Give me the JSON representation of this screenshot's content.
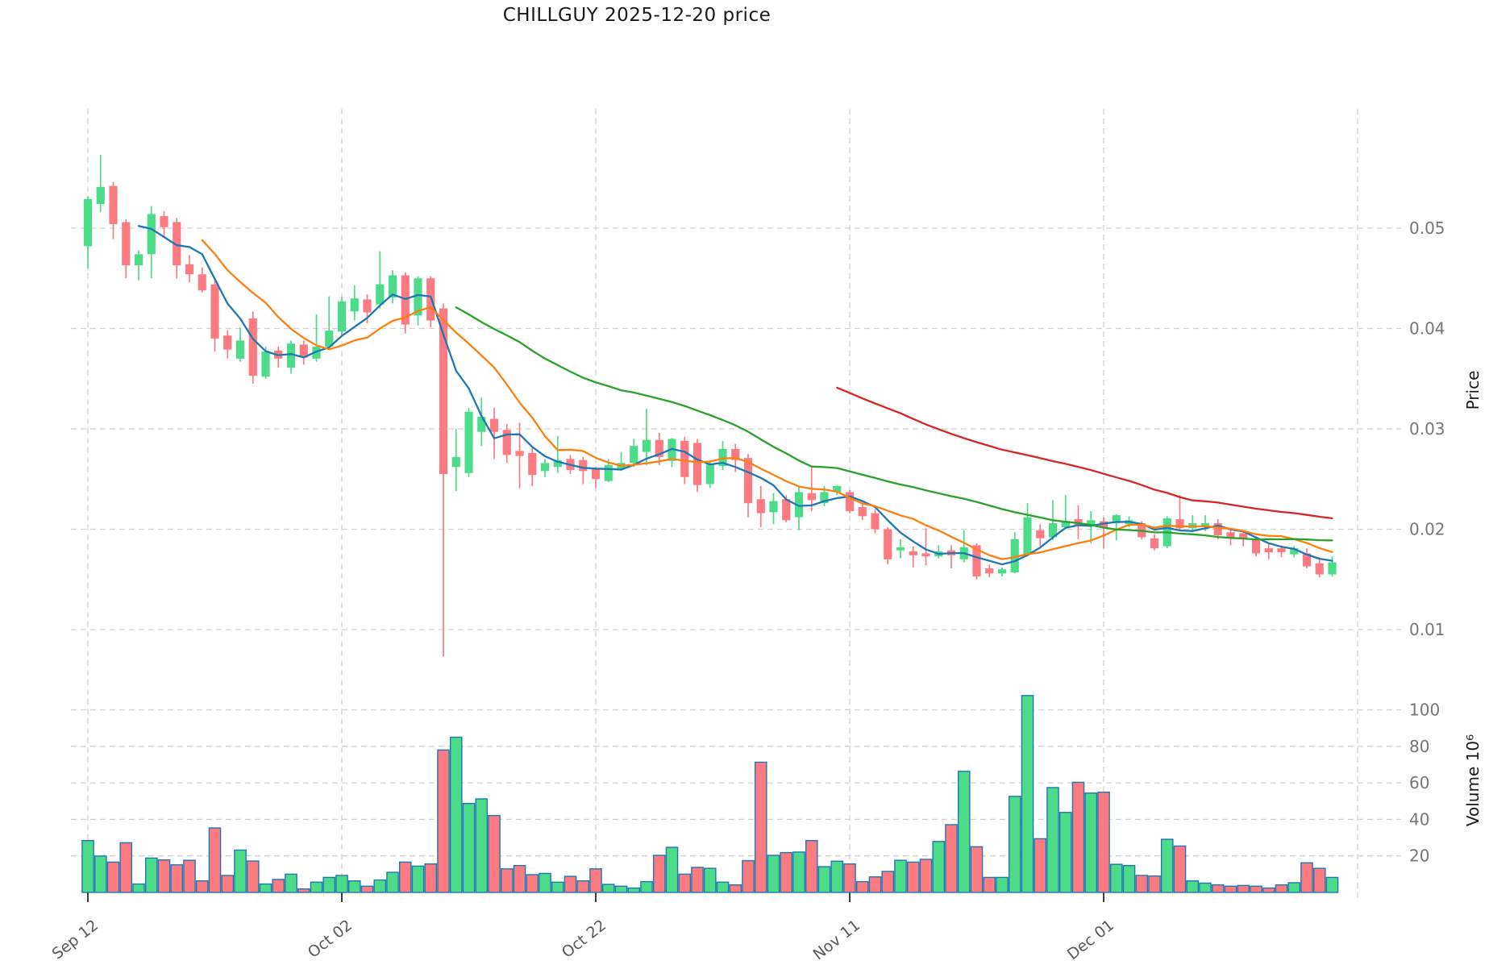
{
  "title": "CHILLGUY  2025-12-20  price",
  "colors": {
    "background": "#ffffff",
    "up": "#4cdc89",
    "down": "#fc7b83",
    "volume_edge": "#1f77b4",
    "grid": "#d3d3d3",
    "tick_label": "#767676",
    "axis_title": "#1a1a1a",
    "x_tick_mark": "#3c3c3c"
  },
  "chart_data": {
    "type": "candlestick+volume",
    "title": "CHILLGUY  2025-12-20  price",
    "ylabel_price": "Price",
    "ylabel_volume": "Volume  10⁶",
    "price_ticks": [
      0.01,
      0.02,
      0.03,
      0.04,
      0.05
    ],
    "volume_ticks": [
      20,
      40,
      60,
      80,
      100
    ],
    "price_range": [
      0.0058,
      0.0619
    ],
    "volume_range": [
      0,
      115.6
    ],
    "grid": true,
    "x_ticks": [
      {
        "label": "Sep 12",
        "date": "2025-09-12"
      },
      {
        "label": "Oct 02",
        "date": "2025-10-02"
      },
      {
        "label": "Oct 22",
        "date": "2025-10-22"
      },
      {
        "label": "Nov 11",
        "date": "2025-11-11"
      },
      {
        "label": "Dec 01",
        "date": "2025-12-01"
      }
    ],
    "right_edge_date": "2025-12-21",
    "moving_averages": [
      {
        "name": "MA5",
        "window": 5,
        "color": "#1f77b4"
      },
      {
        "name": "MA10",
        "window": 10,
        "color": "#ff7f0e"
      },
      {
        "name": "MA30",
        "window": 30,
        "color": "#2ca02c"
      },
      {
        "name": "MA60",
        "window": 60,
        "color": "#d62728"
      }
    ],
    "series_columns": [
      "date",
      "open",
      "high",
      "low",
      "close",
      "volume_millions"
    ],
    "series": [
      [
        "2025-09-12",
        0.0482,
        0.0532,
        0.046,
        0.0529,
        28.4
      ],
      [
        "2025-09-13",
        0.0524,
        0.0573,
        0.0516,
        0.0541,
        19.9
      ],
      [
        "2025-09-14",
        0.0542,
        0.0546,
        0.0489,
        0.0504,
        16.6
      ],
      [
        "2025-09-15",
        0.0506,
        0.0509,
        0.045,
        0.0463,
        27.2
      ],
      [
        "2025-09-16",
        0.0463,
        0.0478,
        0.0448,
        0.0474,
        4.6
      ],
      [
        "2025-09-17",
        0.0474,
        0.0522,
        0.045,
        0.0514,
        18.8
      ],
      [
        "2025-09-18",
        0.0512,
        0.0517,
        0.0491,
        0.0501,
        17.8
      ],
      [
        "2025-09-19",
        0.0506,
        0.051,
        0.045,
        0.0463,
        15.1
      ],
      [
        "2025-09-20",
        0.0464,
        0.0473,
        0.0446,
        0.0454,
        17.6
      ],
      [
        "2025-09-21",
        0.0454,
        0.0461,
        0.0436,
        0.0438,
        6.3
      ],
      [
        "2025-09-22",
        0.0444,
        0.0448,
        0.0377,
        0.039,
        35.3
      ],
      [
        "2025-09-23",
        0.0393,
        0.0398,
        0.037,
        0.0379,
        9.3
      ],
      [
        "2025-09-24",
        0.037,
        0.0401,
        0.0367,
        0.0388,
        23.2
      ],
      [
        "2025-09-25",
        0.041,
        0.0417,
        0.0345,
        0.0353,
        17.2
      ],
      [
        "2025-09-26",
        0.0352,
        0.0382,
        0.035,
        0.0377,
        4.6
      ],
      [
        "2025-09-27",
        0.0378,
        0.0382,
        0.0361,
        0.037,
        7.1
      ],
      [
        "2025-09-28",
        0.0361,
        0.0388,
        0.0355,
        0.0385,
        10.0
      ],
      [
        "2025-09-29",
        0.0384,
        0.0388,
        0.0364,
        0.0371,
        1.9
      ],
      [
        "2025-09-30",
        0.037,
        0.0414,
        0.0367,
        0.0382,
        5.6
      ],
      [
        "2025-10-01",
        0.0382,
        0.0432,
        0.038,
        0.0398,
        8.2
      ],
      [
        "2025-10-02",
        0.0397,
        0.0431,
        0.0392,
        0.0427,
        9.3
      ],
      [
        "2025-10-03",
        0.0417,
        0.0443,
        0.0408,
        0.043,
        6.3
      ],
      [
        "2025-10-04",
        0.0429,
        0.0434,
        0.0405,
        0.0416,
        3.4
      ],
      [
        "2025-10-05",
        0.0424,
        0.0477,
        0.042,
        0.0444,
        6.8
      ],
      [
        "2025-10-06",
        0.0431,
        0.0458,
        0.0425,
        0.0453,
        11.0
      ],
      [
        "2025-10-07",
        0.0453,
        0.0456,
        0.0395,
        0.0404,
        16.6
      ],
      [
        "2025-10-08",
        0.0413,
        0.0452,
        0.0403,
        0.045,
        14.4
      ],
      [
        "2025-10-09",
        0.045,
        0.0452,
        0.0401,
        0.0408,
        15.6
      ],
      [
        "2025-10-10",
        0.042,
        0.0425,
        0.0073,
        0.0255,
        78.0
      ],
      [
        "2025-10-11",
        0.0262,
        0.03,
        0.0238,
        0.0272,
        85.0
      ],
      [
        "2025-10-12",
        0.0256,
        0.0321,
        0.0252,
        0.0317,
        48.7
      ],
      [
        "2025-10-13",
        0.0297,
        0.0331,
        0.0283,
        0.0312,
        51.2
      ],
      [
        "2025-10-14",
        0.031,
        0.0321,
        0.027,
        0.0297,
        42.1
      ],
      [
        "2025-10-15",
        0.0299,
        0.0305,
        0.0266,
        0.0274,
        12.9
      ],
      [
        "2025-10-16",
        0.0278,
        0.0306,
        0.0241,
        0.0273,
        14.7
      ],
      [
        "2025-10-17",
        0.0276,
        0.0281,
        0.0243,
        0.0254,
        9.7
      ],
      [
        "2025-10-18",
        0.0258,
        0.027,
        0.0252,
        0.0266,
        10.4
      ],
      [
        "2025-10-19",
        0.0262,
        0.0293,
        0.0256,
        0.0269,
        5.6
      ],
      [
        "2025-10-20",
        0.027,
        0.0274,
        0.0255,
        0.0259,
        8.8
      ],
      [
        "2025-10-21",
        0.0269,
        0.0272,
        0.0245,
        0.0258,
        6.3
      ],
      [
        "2025-10-22",
        0.026,
        0.0262,
        0.0241,
        0.025,
        12.9
      ],
      [
        "2025-10-23",
        0.0248,
        0.027,
        0.0247,
        0.0264,
        4.4
      ],
      [
        "2025-10-24",
        0.026,
        0.0277,
        0.0258,
        0.0266,
        3.4
      ],
      [
        "2025-10-25",
        0.0266,
        0.029,
        0.0262,
        0.0283,
        2.4
      ],
      [
        "2025-10-26",
        0.0277,
        0.032,
        0.0264,
        0.0289,
        5.9
      ],
      [
        "2025-10-27",
        0.0289,
        0.0296,
        0.0264,
        0.0272,
        20.3
      ],
      [
        "2025-10-28",
        0.0268,
        0.0291,
        0.0262,
        0.029,
        24.7
      ],
      [
        "2025-10-29",
        0.0288,
        0.0292,
        0.0245,
        0.0252,
        10.0
      ],
      [
        "2025-10-30",
        0.0286,
        0.029,
        0.0237,
        0.0244,
        13.7
      ],
      [
        "2025-10-31",
        0.0245,
        0.0267,
        0.0241,
        0.0265,
        13.2
      ],
      [
        "2025-11-01",
        0.0263,
        0.0288,
        0.0259,
        0.028,
        5.6
      ],
      [
        "2025-11-02",
        0.028,
        0.0285,
        0.0257,
        0.0269,
        4.1
      ],
      [
        "2025-11-03",
        0.0271,
        0.0275,
        0.0212,
        0.0226,
        17.4
      ],
      [
        "2025-11-04",
        0.023,
        0.0243,
        0.0202,
        0.0216,
        71.3
      ],
      [
        "2025-11-05",
        0.0217,
        0.0236,
        0.0205,
        0.0228,
        20.3
      ],
      [
        "2025-11-06",
        0.023,
        0.0234,
        0.0207,
        0.0209,
        21.8
      ],
      [
        "2025-11-07",
        0.0212,
        0.0243,
        0.0199,
        0.0237,
        22.1
      ],
      [
        "2025-11-08",
        0.0236,
        0.0263,
        0.0218,
        0.0229,
        28.4
      ],
      [
        "2025-11-09",
        0.0226,
        0.0243,
        0.0223,
        0.0237,
        14.1
      ],
      [
        "2025-11-10",
        0.0237,
        0.0244,
        0.0234,
        0.0243,
        17.1
      ],
      [
        "2025-11-11",
        0.0237,
        0.0239,
        0.0216,
        0.0218,
        15.6
      ],
      [
        "2025-11-12",
        0.0222,
        0.0226,
        0.0209,
        0.0213,
        5.9
      ],
      [
        "2025-11-13",
        0.0216,
        0.022,
        0.0196,
        0.02,
        8.5
      ],
      [
        "2025-11-14",
        0.02,
        0.0202,
        0.0165,
        0.017,
        11.5
      ],
      [
        "2025-11-15",
        0.0179,
        0.019,
        0.0171,
        0.0182,
        17.6
      ],
      [
        "2025-11-16",
        0.0178,
        0.0183,
        0.0162,
        0.0174,
        16.6
      ],
      [
        "2025-11-17",
        0.0176,
        0.0201,
        0.0164,
        0.0173,
        18.1
      ],
      [
        "2025-11-18",
        0.0173,
        0.0184,
        0.0171,
        0.0178,
        27.9
      ],
      [
        "2025-11-19",
        0.0179,
        0.0184,
        0.0161,
        0.0174,
        37.1
      ],
      [
        "2025-11-20",
        0.017,
        0.0199,
        0.0167,
        0.0182,
        66.3
      ],
      [
        "2025-11-21",
        0.0184,
        0.0186,
        0.015,
        0.0153,
        25.0
      ],
      [
        "2025-11-22",
        0.0161,
        0.0165,
        0.0152,
        0.0156,
        8.2
      ],
      [
        "2025-11-23",
        0.0156,
        0.0162,
        0.0153,
        0.016,
        8.2
      ],
      [
        "2025-11-24",
        0.0157,
        0.0197,
        0.0156,
        0.019,
        52.6
      ],
      [
        "2025-11-25",
        0.0175,
        0.0226,
        0.0173,
        0.0212,
        107.8
      ],
      [
        "2025-11-26",
        0.0199,
        0.0205,
        0.0183,
        0.0191,
        29.4
      ],
      [
        "2025-11-27",
        0.0192,
        0.0229,
        0.0189,
        0.0206,
        57.4
      ],
      [
        "2025-11-28",
        0.0202,
        0.0234,
        0.02,
        0.0208,
        43.8
      ],
      [
        "2025-11-29",
        0.021,
        0.0224,
        0.019,
        0.0203,
        60.3
      ],
      [
        "2025-11-30",
        0.0203,
        0.0218,
        0.0186,
        0.0209,
        54.4
      ],
      [
        "2025-12-01",
        0.0208,
        0.0212,
        0.0181,
        0.0202,
        54.9
      ],
      [
        "2025-12-02",
        0.0206,
        0.0215,
        0.0189,
        0.0214,
        15.4
      ],
      [
        "2025-12-03",
        0.0205,
        0.0213,
        0.0202,
        0.0209,
        14.7
      ],
      [
        "2025-12-04",
        0.0206,
        0.0208,
        0.019,
        0.0192,
        9.3
      ],
      [
        "2025-12-05",
        0.0191,
        0.0195,
        0.0179,
        0.0181,
        9.0
      ],
      [
        "2025-12-06",
        0.0183,
        0.0213,
        0.0181,
        0.0211,
        29.1
      ],
      [
        "2025-12-07",
        0.021,
        0.0234,
        0.0198,
        0.0201,
        25.4
      ],
      [
        "2025-12-08",
        0.0201,
        0.0214,
        0.0197,
        0.0206,
        6.3
      ],
      [
        "2025-12-09",
        0.0202,
        0.0214,
        0.0198,
        0.0206,
        5.1
      ],
      [
        "2025-12-10",
        0.0206,
        0.021,
        0.019,
        0.0194,
        4.1
      ],
      [
        "2025-12-11",
        0.0197,
        0.0201,
        0.0184,
        0.0192,
        3.4
      ],
      [
        "2025-12-12",
        0.0196,
        0.0199,
        0.0183,
        0.0191,
        3.8
      ],
      [
        "2025-12-13",
        0.019,
        0.0193,
        0.0173,
        0.0176,
        3.4
      ],
      [
        "2025-12-14",
        0.0181,
        0.0186,
        0.017,
        0.0177,
        2.4
      ],
      [
        "2025-12-15",
        0.0181,
        0.0184,
        0.0172,
        0.0177,
        4.1
      ],
      [
        "2025-12-16",
        0.0175,
        0.0183,
        0.0172,
        0.0181,
        5.3
      ],
      [
        "2025-12-17",
        0.0176,
        0.0181,
        0.0161,
        0.0163,
        16.2
      ],
      [
        "2025-12-18",
        0.0166,
        0.0172,
        0.0152,
        0.0155,
        13.2
      ],
      [
        "2025-12-19",
        0.0155,
        0.0173,
        0.0153,
        0.0167,
        8.2
      ]
    ]
  }
}
